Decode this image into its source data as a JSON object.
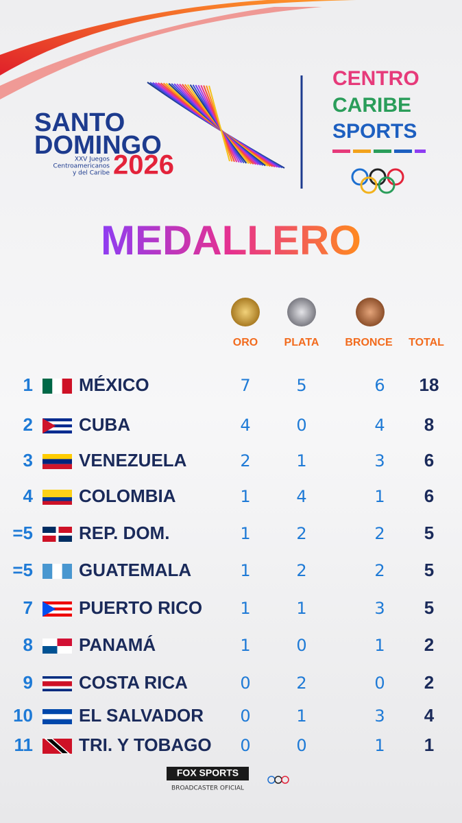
{
  "logo": {
    "line1": "SANTO",
    "line2": "DOMINGO",
    "subtitle": [
      "XXV Juegos",
      "Centroamericanos",
      "y del Caribe"
    ],
    "year": "2026"
  },
  "partner": [
    "CENTRO",
    "CARIBE",
    "SPORTS"
  ],
  "title": "MEDALLERO",
  "columns": [
    "ORO",
    "PLATA",
    "BRONCE",
    "TOTAL"
  ],
  "rows": [
    {
      "rank": "1",
      "country": "MÉXICO",
      "gold": 7,
      "silver": 5,
      "bronze": 6,
      "total": 18
    },
    {
      "rank": "2",
      "country": "CUBA",
      "gold": 4,
      "silver": 0,
      "bronze": 4,
      "total": 8
    },
    {
      "rank": "3",
      "country": "VENEZUELA",
      "gold": 2,
      "silver": 1,
      "bronze": 3,
      "total": 6
    },
    {
      "rank": "4",
      "country": "COLOMBIA",
      "gold": 1,
      "silver": 4,
      "bronze": 1,
      "total": 6
    },
    {
      "rank": "=5",
      "country": "REP. DOM.",
      "gold": 1,
      "silver": 2,
      "bronze": 2,
      "total": 5
    },
    {
      "rank": "=5",
      "country": "GUATEMALA",
      "gold": 1,
      "silver": 2,
      "bronze": 2,
      "total": 5
    },
    {
      "rank": "7",
      "country": "PUERTO RICO",
      "gold": 1,
      "silver": 1,
      "bronze": 3,
      "total": 5
    },
    {
      "rank": "8",
      "country": "PANAMÁ",
      "gold": 1,
      "silver": 0,
      "bronze": 1,
      "total": 2
    },
    {
      "rank": "9",
      "country": "COSTA RICA",
      "gold": 0,
      "silver": 2,
      "bronze": 0,
      "total": 2
    },
    {
      "rank": "10",
      "country": "EL SALVADOR",
      "gold": 0,
      "silver": 1,
      "bronze": 3,
      "total": 4
    },
    {
      "rank": "11",
      "country": "TRI. Y TOBAGO",
      "gold": 0,
      "silver": 0,
      "bronze": 1,
      "total": 1
    }
  ],
  "footer": {
    "brand": "FOX SPORTS",
    "tagline": "BROADCASTER OFICIAL"
  }
}
